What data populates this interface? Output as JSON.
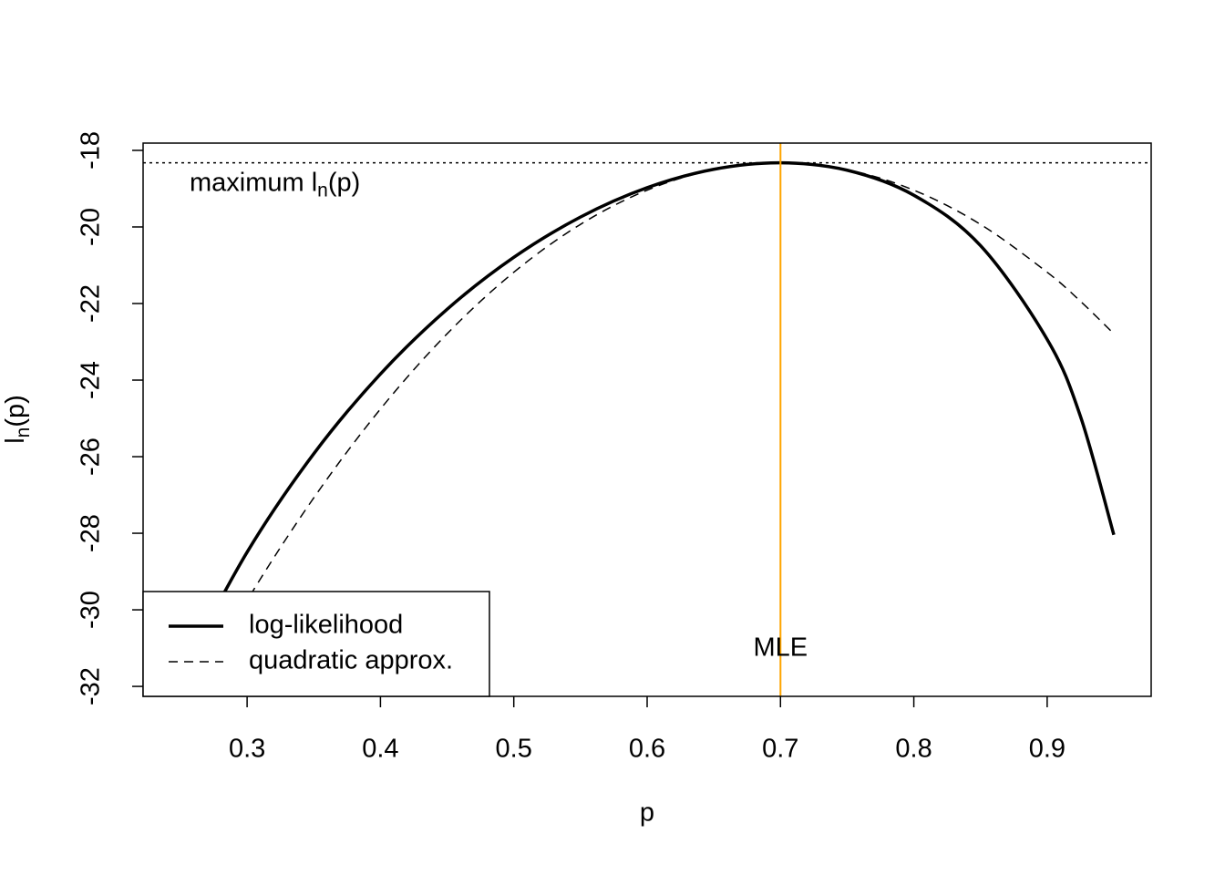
{
  "chart_data": {
    "type": "line",
    "x": [
      0.25,
      0.3,
      0.35,
      0.4,
      0.45,
      0.5,
      0.55,
      0.6,
      0.65,
      0.7,
      0.75,
      0.8,
      0.85,
      0.9,
      0.925,
      0.95
    ],
    "series": [
      {
        "name": "log-likelihood",
        "color": "#000000",
        "dash": "solid",
        "width": 3.5,
        "values": [
          -31.701,
          -28.494,
          -25.923,
          -23.84,
          -22.149,
          -20.794,
          -19.741,
          -18.974,
          -18.495,
          -18.326,
          -18.518,
          -19.171,
          -20.487,
          -22.936,
          -24.95,
          -28.041
        ]
      },
      {
        "name": "quadratic approx.",
        "color": "#000000",
        "dash": "dashed",
        "width": 1.5,
        "values": [
          -32.79,
          -29.755,
          -27.076,
          -24.755,
          -22.79,
          -21.183,
          -19.933,
          -19.04,
          -18.505,
          -18.326,
          -18.505,
          -19.04,
          -19.933,
          -21.183,
          -21.942,
          -22.79
        ]
      }
    ],
    "xlabel": "p",
    "ylabel": {
      "base": "l",
      "subscript": "n",
      "tail": "(p)"
    },
    "xlim": [
      0.222,
      0.978
    ],
    "ylim": [
      -32.26,
      -17.81
    ],
    "xticks": [
      0.3,
      0.4,
      0.5,
      0.6,
      0.7,
      0.8,
      0.9
    ],
    "yticks": [
      -32,
      -30,
      -28,
      -26,
      -24,
      -22,
      -20,
      -18
    ],
    "legend": "bottomleft",
    "max_line": {
      "y": -18.326,
      "style": "dotted",
      "label": {
        "base": "maximum l",
        "subscript": "n",
        "tail": "(p)"
      }
    },
    "mle_line": {
      "x": 0.7,
      "color": "#ffa500",
      "label": "MLE"
    }
  }
}
